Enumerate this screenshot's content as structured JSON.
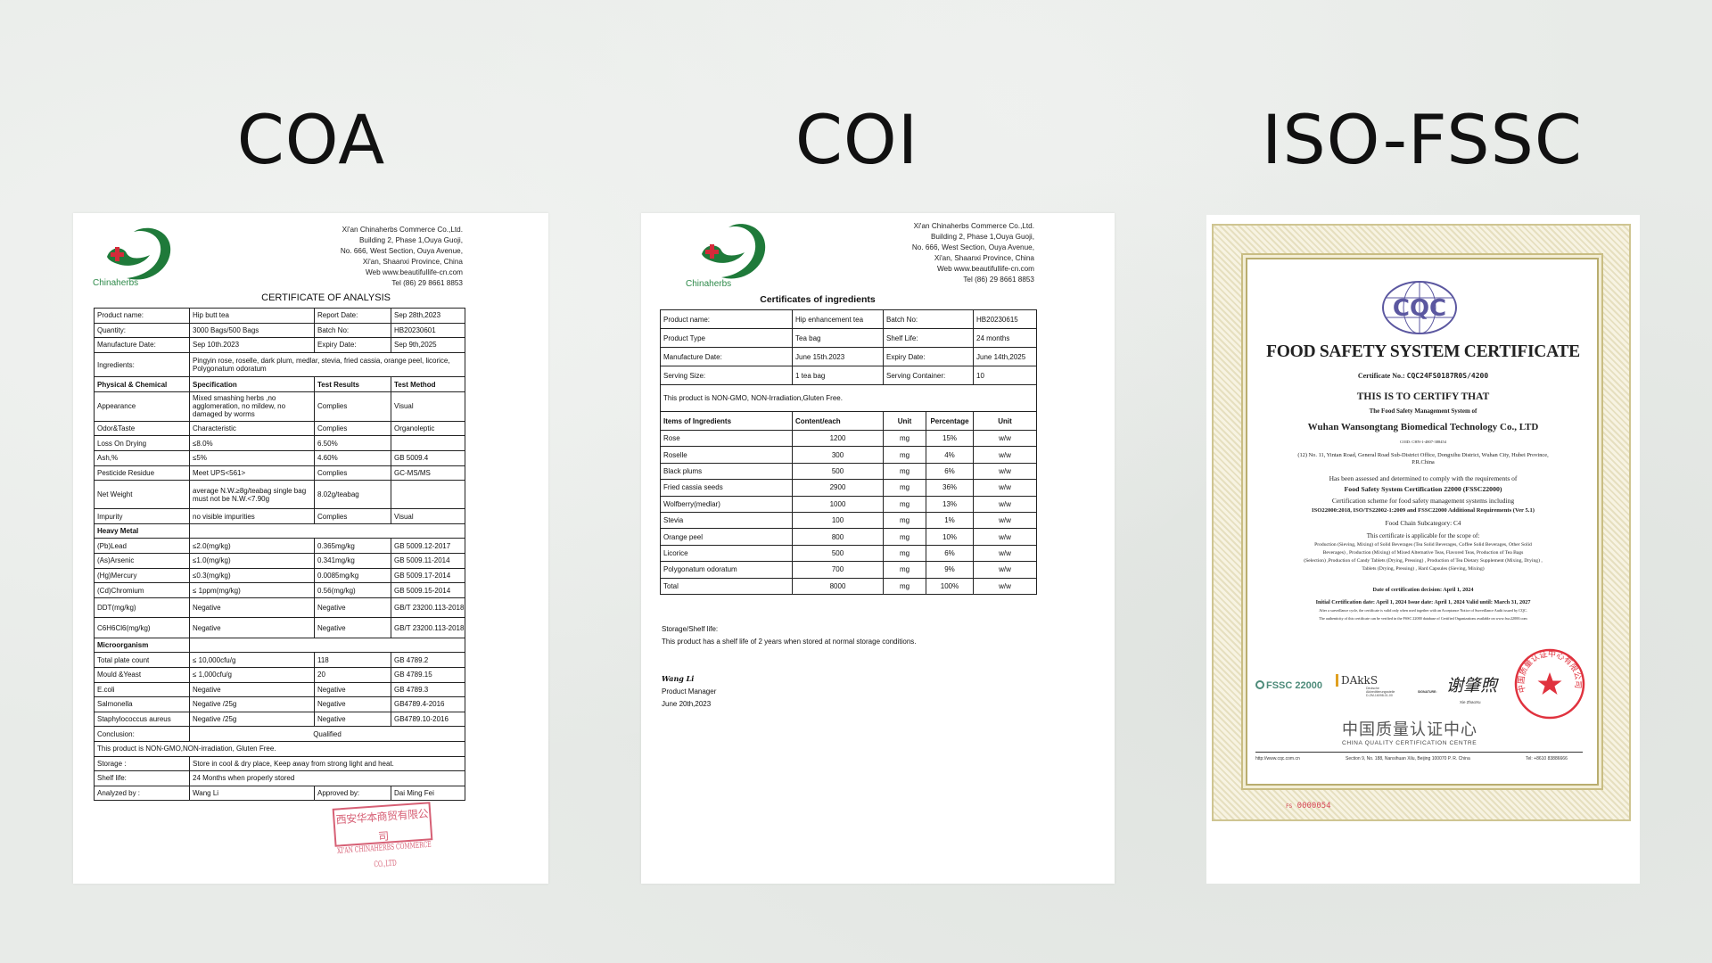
{
  "headings": {
    "coa": "COA",
    "coi": "COI",
    "iso": "ISO-FSSC"
  },
  "company": {
    "logo_text": "Chinaherbs",
    "address_lines": [
      "Xi'an Chinaherbs Commerce Co.,Ltd.",
      "Building 2, Phase 1,Ouya Guoji,",
      "No. 666, West Section, Ouya Avenue,",
      "Xi'an, Shaanxi Province, China",
      "Web www.beautifullife-cn.com",
      "Tel  (86) 29 8661 8853"
    ],
    "colors": {
      "logo_green": "#1f7a3a",
      "logo_red": "#d42a3a"
    }
  },
  "coa": {
    "title": "CERTIFICATE OF ANALYSIS",
    "info": [
      [
        "Product name:",
        "Hip butt tea",
        "Report Date:",
        "Sep 28th,2023"
      ],
      [
        "Quantity:",
        "3000 Bags/500 Bags",
        "Batch No:",
        "HB20230601"
      ],
      [
        "Manufacture Date:",
        "Sep 10th.2023",
        "Expiry Date:",
        "Sep 9th,2025"
      ]
    ],
    "ingredients_label": "Ingredients:",
    "ingredients_value": "Pingyin rose, roselle, dark plum, medlar, stevia, fried cassia, orange peel, licorice, Polygonatum odoratum",
    "columns": [
      "Physical & Chemical",
      "Specification",
      "Test Results",
      "Test Method"
    ],
    "physical": [
      [
        "Appearance",
        "Mixed smashing herbs ,no agglomeration, no mildew, no damaged by worms",
        "Complies",
        "Visual"
      ],
      [
        "Odor&Taste",
        "Characteristic",
        "Complies",
        "Organoleptic"
      ],
      [
        "Loss On Drying",
        "≤8.0%",
        "6.50%",
        ""
      ],
      [
        "Ash,%",
        "≤5%",
        "4.60%",
        "GB 5009.4"
      ],
      [
        "Pesticide Residue",
        "Meet UPS<561>",
        "Complies",
        "GC-MS/MS"
      ],
      [
        "Net Weight",
        "average N.W.≥8g/teabag single bag must not be N.W.<7.90g",
        "8.02g/teabag",
        ""
      ],
      [
        "Impurity",
        "no visible impurities",
        "Complies",
        "Visual"
      ]
    ],
    "heavy_metal_label": "Heavy Metal",
    "heavy_metal": [
      [
        "(Pb)Lead",
        "≤2.0(mg/kg)",
        "0.365mg/kg",
        "GB 5009.12-2017"
      ],
      [
        "(As)Arsenic",
        "≤1.0(mg/kg)",
        "0.341mg/kg",
        "GB 5009.11-2014"
      ],
      [
        "(Hg)Mercury",
        "≤0.3(mg/kg)",
        "0.0085mg/kg",
        "GB 5009.17-2014"
      ],
      [
        "(Cd)Chromium",
        "≤ 1ppm(mg/kg)",
        "0.56(mg/kg)",
        "GB 5009.15-2014"
      ],
      [
        "DDT(mg/kg)",
        "Negative",
        "Negative",
        "GB/T 23200.113-2018"
      ],
      [
        "C6H6Cl6(mg/kg)",
        "Negative",
        "Negative",
        "GB/T 23200.113-2018"
      ]
    ],
    "micro_label": "Microorganism",
    "micro": [
      [
        "Total plate count",
        "≤ 10,000cfu/g",
        "118",
        "GB 4789.2"
      ],
      [
        "Mould &Yeast",
        "≤ 1,000cfu/g",
        "20",
        "GB 4789.15"
      ],
      [
        "E.coli",
        "Negative",
        "Negative",
        "GB 4789.3"
      ],
      [
        "Salmonella",
        "Negative /25g",
        "Negative",
        "GB4789.4-2016"
      ],
      [
        "Staphylococcus aureus",
        "Negative /25g",
        "Negative",
        "GB4789.10-2016"
      ]
    ],
    "conclusion_label": "Conclusion:",
    "conclusion_value": "Qualified",
    "non_gmo": "This product is NON-GMO,NON-irradiation, Gluten Free.",
    "storage_label": "Storage :",
    "storage_value": "Store in cool & dry place, Keep away from strong light and heat.",
    "shelf_label": "Shelf life:",
    "shelf_value": "24 Months when properly stored",
    "analyzed_label": "Analyzed by :",
    "analyzed_value": "Wang Li",
    "approved_label": "Approved by:",
    "approved_value": "Dai Ming Fei",
    "stamp_cn": "西安华本商贸有限公司",
    "stamp_en": "XI'AN CHINAHERBS COMMERCE CO.,LTD"
  },
  "coi": {
    "title": "Certificates of ingredients",
    "info": [
      [
        "Product name:",
        "Hip enhancement tea",
        "Batch No:",
        "HB20230615"
      ],
      [
        "Product Type",
        "Tea bag",
        "Shelf Life:",
        "24 months"
      ],
      [
        "Manufacture Date:",
        "June 15th.2023",
        "Expiry Date:",
        "June 14th,2025"
      ],
      [
        "Serving Size:",
        "1 tea bag",
        "Serving Container:",
        "10"
      ]
    ],
    "non_gmo": "This product is NON-GMO, NON-Irradiation,Gluten Free.",
    "columns": [
      "Items of Ingredients",
      "Content/each",
      "Unit",
      "Percentage",
      "Unit"
    ],
    "rows": [
      [
        "Rose",
        "1200",
        "mg",
        "15%",
        "w/w"
      ],
      [
        "Roselle",
        "300",
        "mg",
        "4%",
        "w/w"
      ],
      [
        "Black plums",
        "500",
        "mg",
        "6%",
        "w/w"
      ],
      [
        "Fried cassia seeds",
        "2900",
        "mg",
        "36%",
        "w/w"
      ],
      [
        "Wolfberry(medlar)",
        "1000",
        "mg",
        "13%",
        "w/w"
      ],
      [
        "Stevia",
        "100",
        "mg",
        "1%",
        "w/w"
      ],
      [
        "Orange peel",
        "800",
        "mg",
        "10%",
        "w/w"
      ],
      [
        "Licorice",
        "500",
        "mg",
        "6%",
        "w/w"
      ],
      [
        "Polygonatum odoratum",
        "700",
        "mg",
        "9%",
        "w/w"
      ],
      [
        "Total",
        "8000",
        "mg",
        "100%",
        "w/w"
      ]
    ],
    "storage_label": "Storage/Shelf life:",
    "storage_text": "This product has a shelf life of 2 years when stored at normal storage conditions.",
    "signature": "Wang  Li",
    "signer_title": "Product Manager",
    "sign_date": "June 20th,2023"
  },
  "iso": {
    "logo_text": "CQC",
    "title": "FOOD SAFETY SYSTEM CERTIFICATE",
    "cert_no_label": "Certificate No.:",
    "cert_no": "CQC24FS0187R0S/4200",
    "certify": "THIS IS TO CERTIFY THAT",
    "system_of": "The Food Safety Management System of",
    "company": "Wuhan Wansongtang Biomedical Technology Co., LTD",
    "coid": "COID: CHN-1-4807-388454",
    "address_1": "(12) No. 11, Yintan Road, General Road Sub-District Office, Dongxihu District, Wuhan City, Hubei Province,",
    "address_2": "P.R.China",
    "assessed": "Has been assessed and determined to comply with the requirements of",
    "scheme_name": "Food Safety System Certification 22000 (FSSC22000)",
    "scheme_desc": "Certification scheme for food safety management systems including",
    "standards": "ISO22000:2018, ISO/TS22002-1:2009 and FSSC22000 Additional Requirements (Ver 5.1)",
    "subcategory": "Food Chain Subcategory:  C4",
    "scope_intro": "This certificate is applicable for the scope of:",
    "scope_lines": [
      "Production (Sieving, Mixing) of Solid Beverages (Tea Solid Beverages, Coffee Solid Beverages, Other Solid",
      "Beverages) , Production (Mixing) of Mixed Alternative Teas, Flavored Teas, Production of Tea Bags",
      "(Selection) ,Production of Candy Tablets (Drying, Pressing) , Production of Tea Dietary Supplement (Mixing, Drying) ,",
      "Tablets (Drying, Pressing) , Hard Capsules (Sieving, Mixing)"
    ],
    "decision_date": "Date of certification decision:  April 1, 2024",
    "dates_line": "Initial Certification date: April 1, 2024    Issue date: April 1, 2024    Valid until: March 31, 2027",
    "note_1": "After a surveillance cycle, the certificate is valid only when used together with an Acceptance Notice of Surveillance Audit issued by CQC.",
    "note_2": "The authenticity of this certificate can be verified in the FSSC 22000 database of Certified Organizations available on www.fssc22000.com",
    "fssc_logo": "FSSC 22000",
    "dakks_logo": "DAkkS",
    "dakks_sub": [
      "Deutsche",
      "Akkreditierungsstelle",
      "D-ZM-16098-01-00"
    ],
    "signature_label": "SIGNATURE:",
    "signature_cn": "谢肇煦",
    "signature_name": "Xie ZhaoXu",
    "seal_text": "中国质量认证中心有限公司",
    "centre_cn": "中国质量认证中心",
    "centre_en": "CHINA QUALITY CERTIFICATION CENTRE",
    "footer_web": "http://www.cqc.com.cn",
    "footer_addr": "Section 9, No. 188, Nansihuan Xilu, Beijing 100070 P. R. China",
    "footer_tel": "Tel: +8610 83886666",
    "serial_prefix": "FS",
    "serial": "0000054",
    "colors": {
      "cqc_purple": "#5b57a0",
      "seal_red": "#e0323e",
      "border_gold": "#c9bd83"
    }
  }
}
